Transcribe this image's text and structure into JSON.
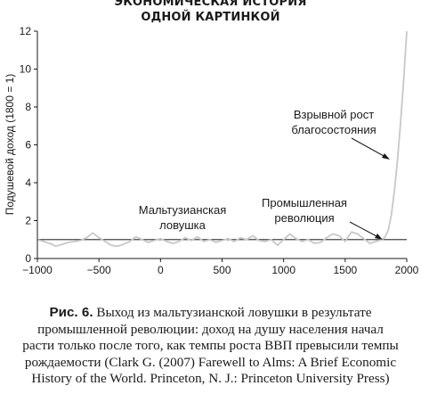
{
  "chart_data": {
    "type": "line",
    "title_lines": [
      "ЭКОНОМИЧЕСКАЯ ИСТОРИЯ",
      "ОДНОЙ КАРТИНКОЙ"
    ],
    "xlabel": "",
    "ylabel": "Подушевой доход (1800 = 1)",
    "xlim": [
      -1000,
      2000
    ],
    "ylim": [
      0,
      12
    ],
    "xticks": [
      -1000,
      -500,
      0,
      500,
      1000,
      1500,
      2000
    ],
    "xtick_labels": [
      "−1000",
      "−500",
      "0",
      "500",
      "1000",
      "1500",
      "2000"
    ],
    "yticks": [
      0,
      2,
      4,
      6,
      8,
      10,
      12
    ],
    "ytick_labels": [
      "0",
      "2",
      "4",
      "6",
      "8",
      "10",
      "12"
    ],
    "grid": false,
    "reference_line": {
      "y": 1
    },
    "series": [
      {
        "x": [
          -1000,
          -950,
          -900,
          -850,
          -800,
          -750,
          -700,
          -650,
          -600,
          -550,
          -500,
          -450,
          -400,
          -350,
          -300,
          -250,
          -200,
          -150,
          -100,
          -50,
          0,
          50,
          100,
          150,
          200,
          250,
          300,
          350,
          400,
          450,
          500,
          550,
          600,
          650,
          700,
          750,
          800,
          850,
          900,
          950,
          1000,
          1050,
          1100,
          1150,
          1200,
          1250,
          1300,
          1350,
          1400,
          1450,
          1500,
          1550,
          1600,
          1650,
          1700,
          1750,
          1800,
          1825,
          1850,
          1875,
          1900,
          1925,
          1950,
          1975,
          2000
        ],
        "y": [
          1.0,
          0.9,
          0.8,
          0.65,
          0.75,
          0.85,
          0.9,
          0.95,
          1.1,
          1.35,
          1.1,
          0.9,
          0.7,
          0.65,
          0.75,
          0.9,
          1.15,
          1.0,
          0.85,
          0.95,
          1.05,
          0.9,
          0.8,
          0.9,
          1.1,
          0.95,
          1.15,
          0.9,
          1.0,
          0.85,
          0.95,
          1.05,
          0.9,
          1.1,
          1.0,
          1.2,
          0.95,
          0.9,
          1.0,
          0.7,
          1.0,
          1.3,
          1.05,
          0.9,
          1.0,
          0.8,
          0.85,
          1.1,
          1.3,
          1.2,
          0.9,
          1.4,
          1.3,
          1.05,
          0.8,
          0.9,
          1.0,
          1.15,
          1.5,
          2.3,
          3.6,
          5.2,
          7.2,
          9.4,
          12.0
        ]
      }
    ],
    "annotations": [
      {
        "lines": [
          "Мальтузианская",
          "ловушка"
        ]
      },
      {
        "lines": [
          "Взрывной рост",
          "благосостояния"
        ]
      },
      {
        "lines": [
          "Промышленная",
          "революция"
        ]
      }
    ]
  },
  "caption": {
    "label": "Рис. 6.",
    "lines": [
      "Выход из мальтузианской ловушки в результате",
      "промышленной революции: доход на душу населения начал",
      "расти только после того, как темпы роста ВВП превысили темпы",
      "рождаемости (Clark G. (2007) Farewell to Alms: A Brief Economic",
      "History of the World. Princeton, N. J.: Princeton University Press)"
    ]
  },
  "colors": {
    "series_line": "#c8c8c8",
    "reference_line": "#444444",
    "axis": "#1a1a1a",
    "text": "#1a1a1a"
  }
}
